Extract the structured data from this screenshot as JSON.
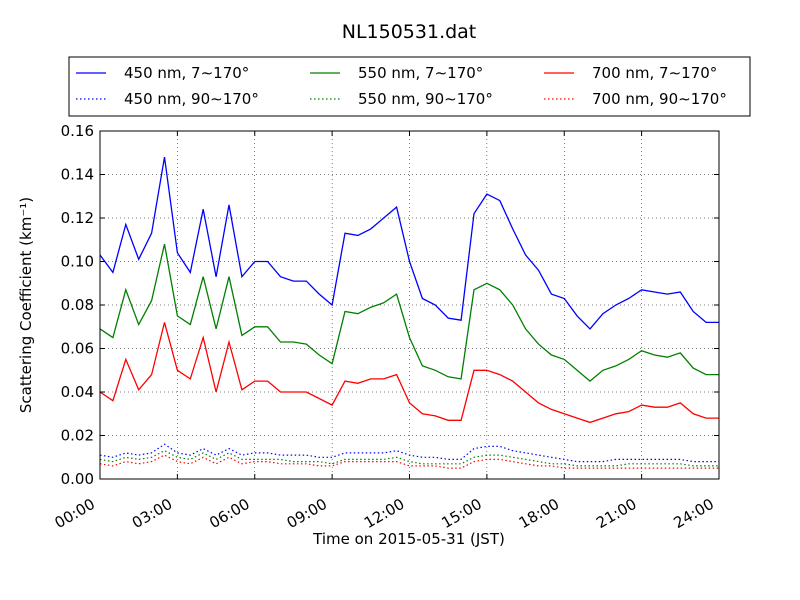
{
  "chart_data": {
    "type": "line",
    "title": "NL150531.dat",
    "xlabel": "Time on 2015-05-31 (JST)",
    "ylabel": "Scattering Coefficient (km⁻¹)",
    "x_unit": "hours",
    "xlim": [
      0,
      24
    ],
    "ylim": [
      0,
      0.16
    ],
    "x_ticks": [
      0,
      3,
      6,
      9,
      12,
      15,
      18,
      21,
      24
    ],
    "x_tick_labels": [
      "00:00",
      "03:00",
      "06:00",
      "09:00",
      "12:00",
      "15:00",
      "18:00",
      "21:00",
      "24:00"
    ],
    "y_ticks": [
      0,
      0.02,
      0.04,
      0.06,
      0.08,
      0.1,
      0.12,
      0.14,
      0.16
    ],
    "y_tick_labels": [
      "0.00",
      "0.02",
      "0.04",
      "0.06",
      "0.08",
      "0.10",
      "0.12",
      "0.14",
      "0.16"
    ],
    "grid": true,
    "legend_position": "top-outside",
    "x": [
      0,
      0.5,
      1,
      1.5,
      2,
      2.5,
      3,
      3.5,
      4,
      4.5,
      5,
      5.5,
      6,
      6.5,
      7,
      7.5,
      8,
      8.5,
      9,
      9.5,
      10,
      10.5,
      11,
      11.5,
      12,
      12.5,
      13,
      13.5,
      14,
      14.5,
      15,
      15.5,
      16,
      16.5,
      17,
      17.5,
      18,
      18.5,
      19,
      19.5,
      20,
      20.5,
      21,
      21.5,
      22,
      22.5,
      23,
      23.5,
      24
    ],
    "series": [
      {
        "name": "450 nm, 7∼170°",
        "color": "#0000ff",
        "style": "solid",
        "values": [
          0.103,
          0.095,
          0.117,
          0.101,
          0.113,
          0.148,
          0.104,
          0.095,
          0.124,
          0.093,
          0.126,
          0.093,
          0.1,
          0.1,
          0.093,
          0.091,
          0.091,
          0.085,
          0.08,
          0.113,
          0.112,
          0.115,
          0.12,
          0.125,
          0.1,
          0.083,
          0.08,
          0.074,
          0.073,
          0.122,
          0.131,
          0.128,
          0.115,
          0.103,
          0.096,
          0.085,
          0.083,
          0.075,
          0.069,
          0.076,
          0.08,
          0.083,
          0.087,
          0.086,
          0.085,
          0.086,
          0.077,
          0.072,
          0.072
        ]
      },
      {
        "name": "450 nm, 90∼170°",
        "color": "#0000ff",
        "style": "dotted",
        "values": [
          0.011,
          0.01,
          0.012,
          0.011,
          0.012,
          0.016,
          0.012,
          0.011,
          0.014,
          0.011,
          0.014,
          0.011,
          0.012,
          0.012,
          0.011,
          0.011,
          0.011,
          0.01,
          0.01,
          0.012,
          0.012,
          0.012,
          0.012,
          0.013,
          0.011,
          0.01,
          0.01,
          0.009,
          0.009,
          0.014,
          0.015,
          0.015,
          0.013,
          0.012,
          0.011,
          0.01,
          0.009,
          0.008,
          0.008,
          0.008,
          0.009,
          0.009,
          0.009,
          0.009,
          0.009,
          0.009,
          0.008,
          0.008,
          0.008
        ]
      },
      {
        "name": "550 nm, 7∼170°",
        "color": "#008000",
        "style": "solid",
        "values": [
          0.069,
          0.065,
          0.087,
          0.071,
          0.082,
          0.108,
          0.075,
          0.071,
          0.093,
          0.069,
          0.093,
          0.066,
          0.07,
          0.07,
          0.063,
          0.063,
          0.062,
          0.057,
          0.053,
          0.077,
          0.076,
          0.079,
          0.081,
          0.085,
          0.065,
          0.052,
          0.05,
          0.047,
          0.046,
          0.087,
          0.09,
          0.087,
          0.08,
          0.069,
          0.062,
          0.057,
          0.055,
          0.05,
          0.045,
          0.05,
          0.052,
          0.055,
          0.059,
          0.057,
          0.056,
          0.058,
          0.051,
          0.048,
          0.048
        ]
      },
      {
        "name": "550 nm, 90∼170°",
        "color": "#008000",
        "style": "dotted",
        "values": [
          0.009,
          0.008,
          0.01,
          0.009,
          0.01,
          0.013,
          0.01,
          0.009,
          0.012,
          0.009,
          0.012,
          0.009,
          0.009,
          0.009,
          0.009,
          0.008,
          0.008,
          0.008,
          0.007,
          0.009,
          0.009,
          0.009,
          0.009,
          0.01,
          0.008,
          0.007,
          0.007,
          0.007,
          0.007,
          0.01,
          0.011,
          0.011,
          0.01,
          0.009,
          0.008,
          0.007,
          0.007,
          0.006,
          0.006,
          0.006,
          0.006,
          0.007,
          0.007,
          0.007,
          0.007,
          0.007,
          0.006,
          0.006,
          0.006
        ]
      },
      {
        "name": "700 nm, 7∼170°",
        "color": "#ff0000",
        "style": "solid",
        "values": [
          0.04,
          0.036,
          0.055,
          0.041,
          0.048,
          0.072,
          0.05,
          0.046,
          0.065,
          0.04,
          0.063,
          0.041,
          0.045,
          0.045,
          0.04,
          0.04,
          0.04,
          0.037,
          0.034,
          0.045,
          0.044,
          0.046,
          0.046,
          0.048,
          0.035,
          0.03,
          0.029,
          0.027,
          0.027,
          0.05,
          0.05,
          0.048,
          0.045,
          0.04,
          0.035,
          0.032,
          0.03,
          0.028,
          0.026,
          0.028,
          0.03,
          0.031,
          0.034,
          0.033,
          0.033,
          0.035,
          0.03,
          0.028,
          0.028
        ]
      },
      {
        "name": "700 nm, 90∼170°",
        "color": "#ff0000",
        "style": "dotted",
        "values": [
          0.007,
          0.006,
          0.008,
          0.007,
          0.008,
          0.011,
          0.008,
          0.007,
          0.01,
          0.007,
          0.01,
          0.007,
          0.008,
          0.008,
          0.007,
          0.007,
          0.007,
          0.006,
          0.006,
          0.008,
          0.008,
          0.008,
          0.008,
          0.008,
          0.006,
          0.006,
          0.006,
          0.005,
          0.005,
          0.008,
          0.009,
          0.009,
          0.008,
          0.007,
          0.006,
          0.006,
          0.005,
          0.005,
          0.005,
          0.005,
          0.005,
          0.005,
          0.005,
          0.005,
          0.005,
          0.005,
          0.005,
          0.005,
          0.005
        ]
      }
    ]
  }
}
